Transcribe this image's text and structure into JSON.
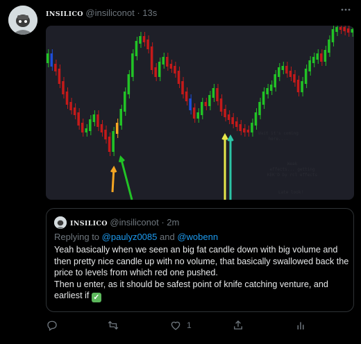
{
  "tweet": {
    "display_name": "INSILICO",
    "handle": "@insiliconot",
    "separator": "·",
    "time": "13s",
    "more_icon": "more-dots-icon",
    "avatar_icon": "profile-avatar"
  },
  "chart": {
    "annotations": {
      "line1": "Wait it's coming here....",
      "line2a": "Weak",
      "line2b": "effects... getting",
      "line2c": "KEK'D by rcl effects",
      "line3": "Late look!"
    },
    "colors": {
      "up": "#22c326",
      "down": "#c41a1a",
      "accent_up": "#1d4ed8",
      "accent_down": "#f5a623",
      "bg": "#1e1f28"
    }
  },
  "quote": {
    "display_name": "INSILICO",
    "handle": "@insiliconot",
    "separator": "·",
    "time": "2m",
    "reply_prefix": "Replying to",
    "reply_user1": "@paulyz0085",
    "reply_and": "and",
    "reply_user2": "@wobenn",
    "text_p1": "Yeah basically when we seen an big fat candle down with big volume and then pretty nice candle up with no volume, that basically swallowed back the price to levels from which red one pushed.",
    "text_p2": "Then u enter, as it should be safest point of knife catching venture, and earliest if",
    "check_symbol": "✓"
  },
  "actions": {
    "reply_icon": "reply-icon",
    "retweet_icon": "retweet-icon",
    "like_icon": "heart-icon",
    "like_count": "1",
    "share_icon": "share-icon",
    "analytics_icon": "analytics-icon"
  }
}
